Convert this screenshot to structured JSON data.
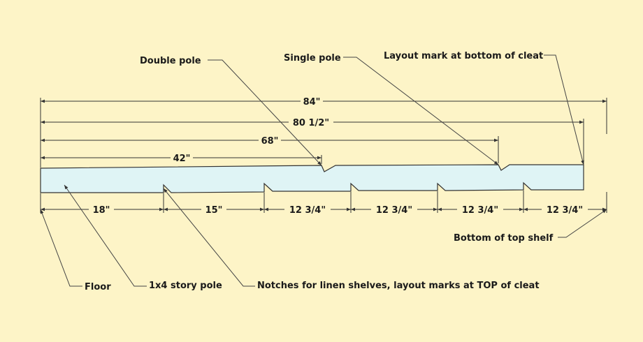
{
  "diagram": {
    "background_color": "#fdf4c7",
    "board_color": "#dff4f5",
    "callouts": {
      "double_pole": "Double pole",
      "single_pole": "Single pole",
      "layout_mark": "Layout mark at bottom of cleat",
      "bottom_top_shelf": "Bottom of top shelf",
      "floor": "Floor",
      "story_pole": "1x4 story pole",
      "notches": "Notches for linen shelves, layout marks at TOP of cleat"
    },
    "top_dimensions": [
      "84\"",
      "80 1/2\"",
      "68\"",
      "42\""
    ],
    "bottom_dimensions": [
      "18\"",
      "15\"",
      "12 3/4\"",
      "12 3/4\"",
      "12 3/4\"",
      "12 3/4\""
    ]
  }
}
